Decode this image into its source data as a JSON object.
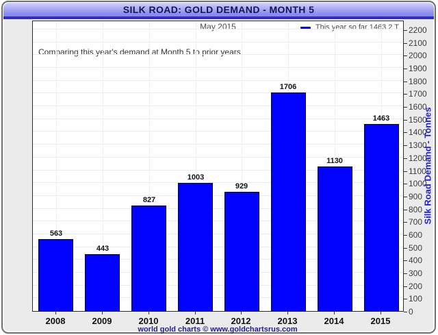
{
  "window": {
    "title": "SILK ROAD: GOLD DEMAND - MONTH 5"
  },
  "chart": {
    "subtitle": "May 2015",
    "annotation": "Comparing this year's demand at Month 5 to prior years",
    "legend_label": "This year so far 1463.2 T",
    "footer": "world gold charts © www.goldchartsrus.com"
  },
  "chart_data": {
    "type": "bar",
    "title": "SILK ROAD: GOLD DEMAND - MONTH 5",
    "subtitle": "May 2015",
    "categories": [
      "2008",
      "2009",
      "2010",
      "2011",
      "2012",
      "2013",
      "2014",
      "2015"
    ],
    "values": [
      563,
      443,
      827,
      1003,
      929,
      1706,
      1130,
      1463
    ],
    "xlabel": "",
    "ylabel": "Silk Road Demand - Tonnes",
    "ylim": [
      0,
      2200
    ],
    "ytick_step": 100,
    "yaxis_side": "right",
    "grid": true,
    "bar_color": "#0101ff",
    "legend": [
      "This year so far 1463.2 T"
    ],
    "legend_position": "top-right",
    "annotations": [
      "Comparing this year's demand at Month 5 to prior years"
    ],
    "data_labels": true
  },
  "colors": {
    "bar": "#0101ff",
    "axis_title": "#2020dd",
    "footer_text": "#202090",
    "title_text": "#14145a",
    "titlebar_gradient_top": "#d3d3fb",
    "titlebar_gradient_bottom": "#8585ee",
    "titlebar_stripe": "#2e2ec0",
    "gridline": "#e1ecf7",
    "window_bg": "#ebebeb"
  }
}
